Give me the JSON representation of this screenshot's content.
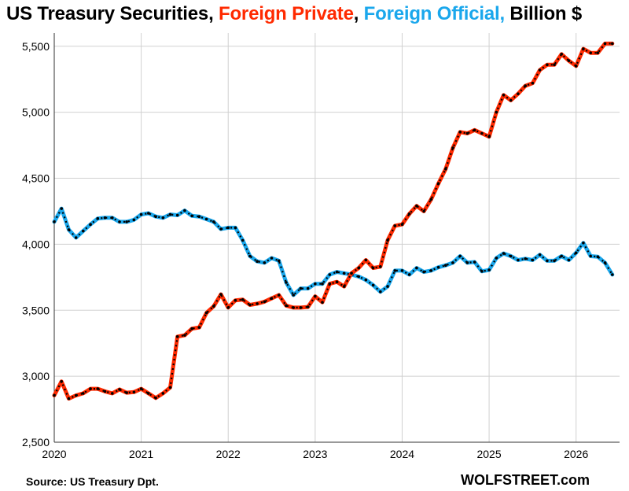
{
  "title": {
    "part1": "US Treasury Securities, ",
    "part2": "Foreign Private",
    "sep": ", ",
    "part3": "Foreign Official,",
    "part4": " Billion $"
  },
  "source": "Source: US Treasury  Dpt.",
  "brand": "WOLFSTREET.com",
  "colors": {
    "foreign_private": "#ff2a00",
    "foreign_official": "#1aa7ec",
    "marker": "#000000",
    "grid": "#d0d0d0"
  },
  "chart_data": {
    "type": "line",
    "title": "US Treasury Securities, Foreign Private, Foreign Official, Billion $",
    "xlabel": "",
    "ylabel": "",
    "ylim": [
      2500,
      5600
    ],
    "yticks": [
      "2,500",
      "3,000",
      "3,500",
      "4,000",
      "4,500",
      "5,000",
      "5,500"
    ],
    "ytick_values": [
      2500,
      3000,
      3500,
      4000,
      4500,
      5000,
      5500
    ],
    "xticks": [
      "2020",
      "2021",
      "2022",
      "2023",
      "2024",
      "2025",
      "2026"
    ],
    "xtick_values": [
      2020,
      2021,
      2022,
      2023,
      2024,
      2025,
      2026
    ],
    "xlim": [
      2020,
      2026.5
    ],
    "grid": true,
    "x": [
      2020.0,
      2020.083,
      2020.167,
      2020.25,
      2020.333,
      2020.417,
      2020.5,
      2020.583,
      2020.667,
      2020.75,
      2020.833,
      2020.917,
      2021.0,
      2021.083,
      2021.167,
      2021.25,
      2021.333,
      2021.417,
      2021.5,
      2021.583,
      2021.667,
      2021.75,
      2021.833,
      2021.917,
      2022.0,
      2022.083,
      2022.167,
      2022.25,
      2022.333,
      2022.417,
      2022.5,
      2022.583,
      2022.667,
      2022.75,
      2022.833,
      2022.917,
      2023.0,
      2023.083,
      2023.167,
      2023.25,
      2023.333,
      2023.417,
      2023.5,
      2023.583,
      2023.667,
      2023.75,
      2023.833,
      2023.917,
      2024.0,
      2024.083,
      2024.167,
      2024.25,
      2024.333,
      2024.417,
      2024.5,
      2024.583,
      2024.667,
      2024.75,
      2024.833,
      2024.917,
      2025.0,
      2025.083,
      2025.167,
      2025.25,
      2025.333,
      2025.417,
      2025.5,
      2025.583,
      2025.667,
      2025.75,
      2025.833,
      2025.917,
      2026.0,
      2026.083,
      2026.167,
      2026.25,
      2026.333,
      2026.417
    ],
    "series": [
      {
        "name": "Foreign Private",
        "values": [
          2855,
          2960,
          2830,
          2855,
          2870,
          2905,
          2905,
          2885,
          2870,
          2900,
          2875,
          2880,
          2905,
          2870,
          2835,
          2870,
          2915,
          3300,
          3310,
          3360,
          3370,
          3480,
          3530,
          3620,
          3520,
          3575,
          3580,
          3540,
          3550,
          3565,
          3590,
          3615,
          3535,
          3520,
          3520,
          3525,
          3605,
          3560,
          3700,
          3715,
          3680,
          3780,
          3820,
          3880,
          3820,
          3830,
          4030,
          4140,
          4150,
          4230,
          4290,
          4250,
          4340,
          4460,
          4570,
          4730,
          4850,
          4840,
          4865,
          4840,
          4815,
          5000,
          5130,
          5090,
          5140,
          5200,
          5220,
          5320,
          5360,
          5360,
          5440,
          5390,
          5350,
          5480,
          5450,
          5450,
          5520,
          5520
        ]
      },
      {
        "name": "Foreign Official",
        "values": [
          4170,
          4270,
          4110,
          4050,
          4100,
          4150,
          4195,
          4200,
          4200,
          4170,
          4170,
          4185,
          4225,
          4235,
          4210,
          4200,
          4225,
          4220,
          4255,
          4215,
          4210,
          4190,
          4170,
          4115,
          4125,
          4125,
          4030,
          3910,
          3870,
          3860,
          3895,
          3875,
          3710,
          3615,
          3665,
          3665,
          3700,
          3700,
          3770,
          3790,
          3780,
          3770,
          3755,
          3730,
          3690,
          3640,
          3680,
          3800,
          3800,
          3770,
          3820,
          3790,
          3800,
          3825,
          3840,
          3860,
          3910,
          3860,
          3865,
          3795,
          3805,
          3895,
          3930,
          3910,
          3880,
          3890,
          3880,
          3920,
          3875,
          3875,
          3910,
          3880,
          3935,
          4010,
          3910,
          3905,
          3860,
          3770
        ]
      }
    ]
  }
}
